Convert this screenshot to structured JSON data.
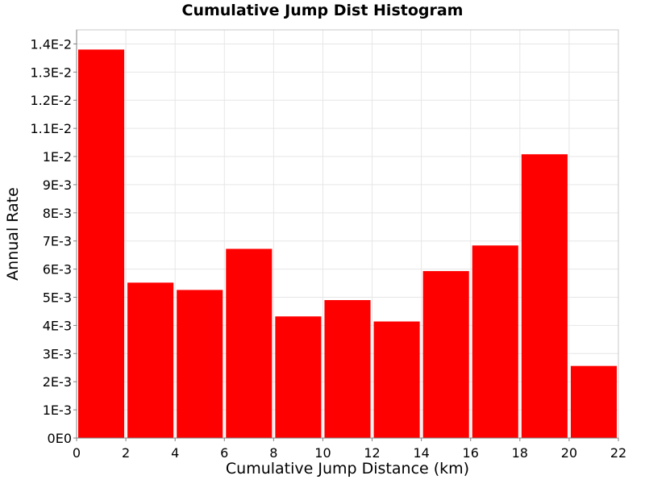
{
  "chart_data": {
    "type": "bar",
    "title": "Cumulative Jump Dist Histogram",
    "xlabel": "Cumulative Jump Distance (km)",
    "ylabel": "Annual Rate",
    "bins": [
      {
        "x0": 0,
        "x1": 2,
        "value": 0.0138
      },
      {
        "x0": 2,
        "x1": 4,
        "value": 0.00552
      },
      {
        "x0": 4,
        "x1": 6,
        "value": 0.00526
      },
      {
        "x0": 6,
        "x1": 8,
        "value": 0.00672
      },
      {
        "x0": 8,
        "x1": 10,
        "value": 0.00432
      },
      {
        "x0": 10,
        "x1": 12,
        "value": 0.0049
      },
      {
        "x0": 12,
        "x1": 14,
        "value": 0.00414
      },
      {
        "x0": 14,
        "x1": 16,
        "value": 0.00593
      },
      {
        "x0": 16,
        "x1": 18,
        "value": 0.00684
      },
      {
        "x0": 18,
        "x1": 20,
        "value": 0.01008
      },
      {
        "x0": 20,
        "x1": 22,
        "value": 0.00256
      }
    ],
    "xlim": [
      0,
      22
    ],
    "ylim": [
      0,
      0.0145
    ],
    "x_ticks": [
      0,
      2,
      4,
      6,
      8,
      10,
      12,
      14,
      16,
      18,
      20,
      22
    ],
    "x_tick_labels": [
      "0",
      "2",
      "4",
      "6",
      "8",
      "10",
      "12",
      "14",
      "16",
      "18",
      "20",
      "22"
    ],
    "y_ticks": [
      0,
      0.001,
      0.002,
      0.003,
      0.004,
      0.005,
      0.006,
      0.007,
      0.008,
      0.009,
      0.01,
      0.011,
      0.012,
      0.013,
      0.014
    ],
    "y_tick_labels": [
      "0E0",
      "1E-3",
      "2E-3",
      "3E-3",
      "4E-3",
      "5E-3",
      "6E-3",
      "7E-3",
      "8E-3",
      "9E-3",
      "1E-2",
      "1.1E-2",
      "1.2E-2",
      "1.3E-2",
      "1.4E-2"
    ],
    "grid": true,
    "legend": "none",
    "colors": {
      "bar": "#ff0000",
      "grid": "#e6e6e6",
      "axis": "#808080",
      "plot_border": "#c8c8c8"
    }
  }
}
